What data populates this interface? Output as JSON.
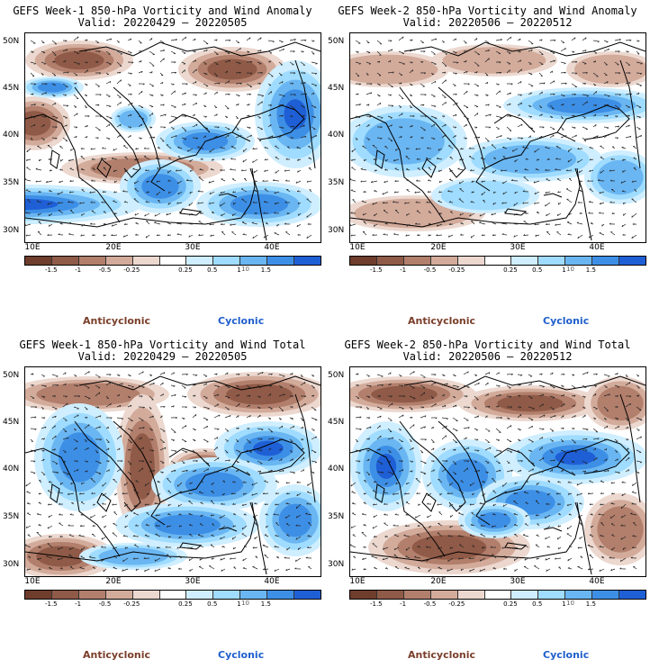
{
  "panels": [
    {
      "title": "GEFS Week-1 850-hPa Vorticity and Wind Anomaly",
      "valid": "Valid: 20220429 – 20220505",
      "pattern": "week1_anomaly"
    },
    {
      "title": "GEFS Week-2 850-hPa Vorticity and Wind Anomaly",
      "valid": "Valid: 20220506 – 20220512",
      "pattern": "week2_anomaly"
    },
    {
      "title": "GEFS Week-1 850-hPa Vorticity and Wind Total",
      "valid": "Valid: 20220429 – 20220505",
      "pattern": "week1_total"
    },
    {
      "title": "GEFS Week-2 850-hPa Vorticity and Wind Total",
      "valid": "Valid: 20220506 – 20220512",
      "pattern": "week2_total"
    }
  ],
  "lat_labels": [
    "50N",
    "45N",
    "40N",
    "35N",
    "30N"
  ],
  "lon_labels": [
    "10E",
    "20E",
    "30E",
    "40E"
  ],
  "colorbar": {
    "ticks": [
      "-1.5",
      "-1",
      "-0.5",
      "-0.25",
      "0.25",
      "0.5",
      "1",
      "1.5"
    ],
    "unit": "10",
    "colors": [
      "#6f3d2c",
      "#8f5a47",
      "#b27f6c",
      "#d3ab9b",
      "#ecd8cf",
      "#ffffff",
      "#cfeeff",
      "#9fdcff",
      "#6ab6f2",
      "#3d8fe6",
      "#1f5fd6"
    ]
  },
  "legend": {
    "anticyclonic": "Anticyclonic",
    "cyclonic": "Cyclonic",
    "anticyclonic_color": "#7a3e2a",
    "cyclonic_color": "#1f5fcc"
  }
}
